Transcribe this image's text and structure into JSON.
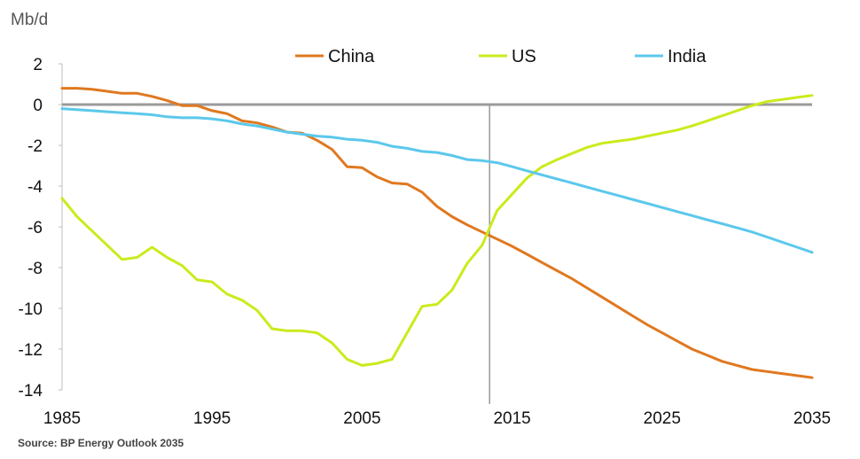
{
  "chart_data": {
    "type": "line",
    "ylabel": "Mb/d",
    "source": "Source: BP Energy Outlook 2035",
    "xlim": [
      1985,
      2035
    ],
    "ylim": [
      -14,
      2
    ],
    "x_ticks": [
      "1985",
      "1995",
      "2005",
      "2015",
      "2025",
      "2035"
    ],
    "y_ticks": [
      "2",
      "0",
      "-2",
      "-4",
      "-6",
      "-8",
      "-10",
      "-12",
      "-14"
    ],
    "vertical_marker_x": 2013.5,
    "legend_position": "top",
    "x": [
      1985,
      1986,
      1987,
      1988,
      1989,
      1990,
      1991,
      1992,
      1993,
      1994,
      1995,
      1996,
      1997,
      1998,
      1999,
      2000,
      2001,
      2002,
      2003,
      2004,
      2005,
      2006,
      2007,
      2008,
      2009,
      2010,
      2011,
      2012,
      2013,
      2014,
      2015,
      2016,
      2017,
      2018,
      2019,
      2020,
      2021,
      2022,
      2023,
      2024,
      2025,
      2026,
      2027,
      2028,
      2029,
      2030,
      2031,
      2032,
      2033,
      2034,
      2035
    ],
    "series": [
      {
        "name": "China",
        "color": "#e07820",
        "values": [
          0.8,
          0.8,
          0.75,
          0.65,
          0.55,
          0.55,
          0.4,
          0.2,
          -0.05,
          -0.05,
          -0.3,
          -0.45,
          -0.8,
          -0.9,
          -1.1,
          -1.35,
          -1.4,
          -1.75,
          -2.2,
          -3.05,
          -3.1,
          -3.55,
          -3.85,
          -3.9,
          -4.3,
          -5.0,
          -5.5,
          -5.9,
          -6.25,
          -6.6,
          -6.95,
          -7.35,
          -7.75,
          -8.15,
          -8.55,
          -9.0,
          -9.45,
          -9.9,
          -10.35,
          -10.8,
          -11.2,
          -11.6,
          -12.0,
          -12.3,
          -12.6,
          -12.8,
          -13.0,
          -13.1,
          -13.2,
          -13.3,
          -13.4
        ]
      },
      {
        "name": "US",
        "color": "#ccea1c",
        "values": [
          -4.6,
          -5.5,
          -6.2,
          -6.9,
          -7.6,
          -7.5,
          -7.0,
          -7.5,
          -7.9,
          -8.6,
          -8.7,
          -9.3,
          -9.6,
          -10.1,
          -11.0,
          -11.1,
          -11.1,
          -11.2,
          -11.7,
          -12.5,
          -12.8,
          -12.7,
          -12.5,
          -11.2,
          -9.9,
          -9.8,
          -9.1,
          -7.8,
          -6.9,
          -5.2,
          -4.4,
          -3.6,
          -3.05,
          -2.7,
          -2.4,
          -2.1,
          -1.9,
          -1.8,
          -1.7,
          -1.55,
          -1.4,
          -1.25,
          -1.05,
          -0.8,
          -0.55,
          -0.3,
          -0.05,
          0.15,
          0.25,
          0.35,
          0.45
        ]
      },
      {
        "name": "India",
        "color": "#5bc8ec",
        "values": [
          -0.2,
          -0.25,
          -0.3,
          -0.35,
          -0.4,
          -0.45,
          -0.5,
          -0.6,
          -0.65,
          -0.65,
          -0.7,
          -0.8,
          -0.95,
          -1.05,
          -1.2,
          -1.35,
          -1.45,
          -1.55,
          -1.6,
          -1.7,
          -1.75,
          -1.85,
          -2.05,
          -2.15,
          -2.3,
          -2.35,
          -2.5,
          -2.7,
          -2.75,
          -2.85,
          -3.05,
          -3.25,
          -3.45,
          -3.65,
          -3.85,
          -4.05,
          -4.25,
          -4.45,
          -4.65,
          -4.85,
          -5.05,
          -5.25,
          -5.45,
          -5.65,
          -5.85,
          -6.05,
          -6.25,
          -6.5,
          -6.75,
          -7.0,
          -7.25
        ]
      }
    ]
  }
}
